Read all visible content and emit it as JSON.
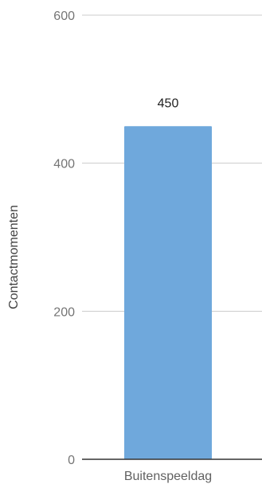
{
  "chart_data": {
    "type": "bar",
    "categories": [
      "Buitenspeeldag"
    ],
    "values": [
      450
    ],
    "data_labels": [
      "450"
    ],
    "title": "",
    "xlabel": "",
    "ylabel": "Contactmomenten",
    "ylim": [
      0,
      600
    ],
    "yticks": [
      0,
      200,
      400,
      600
    ],
    "ytick_labels": [
      "0",
      "200",
      "400",
      "600"
    ],
    "grid": true,
    "legend": "none",
    "colors": {
      "bar": "#6fa8dc",
      "grid": "#cccccc",
      "baseline": "#333333"
    }
  }
}
